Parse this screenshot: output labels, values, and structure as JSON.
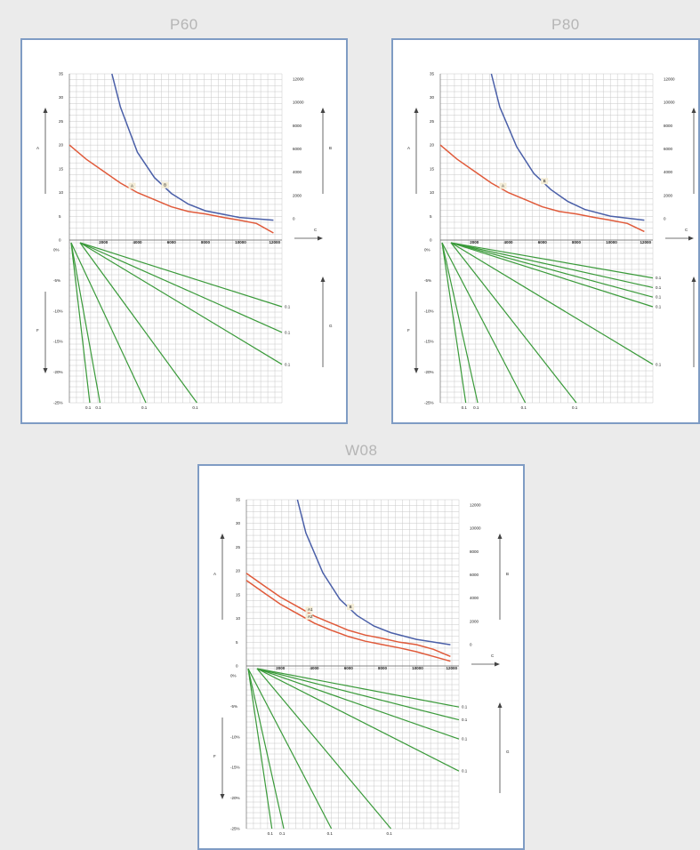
{
  "colors": {
    "background": "#ebebeb",
    "panel_border": "#7f9cc4",
    "blue_curve": "#4a5fa8",
    "red_curve": "#e05a3a",
    "green_lines": "#3a9a3a",
    "grid": "#c8c8c8",
    "title": "#b5b5b5"
  },
  "chart_data": [
    {
      "type": "line",
      "title": "P60",
      "top": {
        "left_axis_label": "A",
        "right_axis_label": "B",
        "x_axis_label": "C",
        "left_ticks": [
          "35",
          "30",
          "25",
          "20",
          "15",
          "10",
          "5",
          "0"
        ],
        "right_ticks": [
          "12000",
          "10000",
          "8000",
          "6000",
          "4000",
          "2000",
          "0"
        ],
        "x_ticks": [
          "2000",
          "4000",
          "6000",
          "8000",
          "10000",
          "12000"
        ],
        "xlim": [
          0,
          12500
        ],
        "left_ylim": [
          0,
          35
        ],
        "right_ylim": [
          0,
          12500
        ],
        "series": [
          {
            "axis": "right",
            "color": "blue",
            "label": "B",
            "x": [
              2500,
              3000,
              4000,
              5000,
              6000,
              7000,
              8000,
              10000,
              12000
            ],
            "y": [
              12500,
              10000,
              6600,
              4700,
              3500,
              2700,
              2200,
              1700,
              1500
            ]
          },
          {
            "axis": "left",
            "color": "red",
            "label": "A",
            "x": [
              0,
              1000,
              2000,
              3000,
              4000,
              5000,
              6000,
              7000,
              8000,
              9000,
              10000,
              11000,
              12000
            ],
            "y": [
              20,
              17,
              14.5,
              12,
              10,
              8.5,
              7,
              6,
              5.5,
              4.8,
              4.2,
              3.5,
              1.5
            ]
          }
        ]
      },
      "bottom": {
        "left_axis_label": "F",
        "right_axis_label": "G",
        "y_ticks": [
          "0%",
          "-5%",
          "-10%",
          "-15%",
          "-20%",
          "-25%"
        ],
        "ylim": [
          0,
          -25
        ],
        "lines": [
          {
            "label": "0.1",
            "end_x": 1200,
            "end_y": -25
          },
          {
            "label": "0.1",
            "end_x": 1800,
            "end_y": -25
          },
          {
            "label": "0.1",
            "end_x": 4500,
            "end_y": -25
          },
          {
            "label": "0.1",
            "end_x": 7500,
            "end_y": -25
          },
          {
            "label": "0.1",
            "end_x": 12500,
            "end_y": -19
          },
          {
            "label": "0.1",
            "end_x": 12500,
            "end_y": -14
          },
          {
            "label": "0.1",
            "end_x": 12500,
            "end_y": -10
          }
        ]
      }
    },
    {
      "type": "line",
      "title": "P80",
      "top": {
        "left_axis_label": "A",
        "right_axis_label": "B",
        "x_axis_label": "C",
        "left_ticks": [
          "35",
          "30",
          "25",
          "20",
          "15",
          "10",
          "5",
          "0"
        ],
        "right_ticks": [
          "12000",
          "10000",
          "8000",
          "6000",
          "4000",
          "2000",
          "0"
        ],
        "x_ticks": [
          "2000",
          "4000",
          "6000",
          "8000",
          "10000",
          "12000"
        ],
        "xlim": [
          0,
          12500
        ],
        "left_ylim": [
          0,
          35
        ],
        "right_ylim": [
          0,
          12500
        ],
        "series": [
          {
            "axis": "right",
            "color": "blue",
            "label": "B",
            "x": [
              3000,
              3500,
              4500,
              5500,
              6500,
              7500,
              8500,
              10000,
              12000
            ],
            "y": [
              12500,
              10000,
              7000,
              5000,
              3800,
              2900,
              2300,
              1800,
              1500
            ]
          },
          {
            "axis": "left",
            "color": "red",
            "label": "A",
            "x": [
              0,
              1000,
              2000,
              3000,
              4000,
              5000,
              6000,
              7000,
              8000,
              9000,
              10000,
              11000,
              12000
            ],
            "y": [
              20,
              17,
              14.5,
              12,
              10,
              8.5,
              7,
              6,
              5.5,
              4.8,
              4.2,
              3.5,
              1.8
            ]
          }
        ]
      },
      "bottom": {
        "left_axis_label": "F",
        "right_axis_label": "G",
        "y_ticks": [
          "0%",
          "-5%",
          "-10%",
          "-15%",
          "-20%",
          "-25%"
        ],
        "ylim": [
          0,
          -25
        ],
        "lines": [
          {
            "label": "0.1",
            "end_x": 1500,
            "end_y": -25
          },
          {
            "label": "0.1",
            "end_x": 2200,
            "end_y": -25
          },
          {
            "label": "0.1",
            "end_x": 5000,
            "end_y": -25
          },
          {
            "label": "0.1",
            "end_x": 8000,
            "end_y": -25
          },
          {
            "label": "0.1",
            "end_x": 12500,
            "end_y": -19
          },
          {
            "label": "0.1",
            "end_x": 12500,
            "end_y": -10
          },
          {
            "label": "0.1",
            "end_x": 12500,
            "end_y": -8.5
          },
          {
            "label": "0.1",
            "end_x": 12500,
            "end_y": -7
          },
          {
            "label": "0.1",
            "end_x": 12500,
            "end_y": -5.5
          }
        ]
      }
    },
    {
      "type": "line",
      "title": "W08",
      "top": {
        "left_axis_label": "A",
        "right_axis_label": "B",
        "x_axis_label": "C",
        "left_ticks": [
          "35",
          "30",
          "25",
          "20",
          "15",
          "10",
          "5",
          "0"
        ],
        "right_ticks": [
          "12000",
          "10000",
          "8000",
          "6000",
          "4000",
          "2000",
          "0"
        ],
        "x_ticks": [
          "2000",
          "4000",
          "6000",
          "8000",
          "10000",
          "12000"
        ],
        "xlim": [
          0,
          12500
        ],
        "left_ylim": [
          0,
          35
        ],
        "right_ylim": [
          0,
          12500
        ],
        "series": [
          {
            "axis": "right",
            "color": "blue",
            "label": "B",
            "x": [
              3000,
              3500,
              4500,
              5500,
              6500,
              7500,
              8500,
              10000,
              12000
            ],
            "y": [
              12500,
              10000,
              7000,
              5000,
              3800,
              3000,
              2500,
              2000,
              1600
            ]
          },
          {
            "axis": "left",
            "color": "red",
            "label": "A1",
            "x": [
              0,
              1000,
              2000,
              3000,
              4000,
              5000,
              6000,
              7000,
              8000,
              9000,
              10000,
              11000,
              12000
            ],
            "y": [
              19.5,
              17,
              14.5,
              12.5,
              10.5,
              9,
              7.5,
              6.5,
              5.8,
              5,
              4.5,
              3.5,
              2
            ]
          },
          {
            "axis": "left",
            "color": "red",
            "label": "A2",
            "x": [
              0,
              1000,
              2000,
              3000,
              4000,
              5000,
              6000,
              7000,
              8000,
              9000,
              10000,
              11000,
              12000
            ],
            "y": [
              18,
              15.5,
              13,
              11,
              9,
              7.5,
              6.2,
              5.2,
              4.5,
              3.8,
              3,
              2,
              1
            ]
          }
        ]
      },
      "bottom": {
        "left_axis_label": "F",
        "right_axis_label": "G",
        "y_ticks": [
          "0%",
          "-5%",
          "-10%",
          "-15%",
          "-20%",
          "-25%"
        ],
        "ylim": [
          0,
          -25
        ],
        "lines": [
          {
            "label": "0.1",
            "end_x": 1500,
            "end_y": -25
          },
          {
            "label": "0.1",
            "end_x": 2200,
            "end_y": -25
          },
          {
            "label": "0.1",
            "end_x": 5000,
            "end_y": -25
          },
          {
            "label": "0.1",
            "end_x": 8500,
            "end_y": -25
          },
          {
            "label": "0.1",
            "end_x": 12500,
            "end_y": -16
          },
          {
            "label": "0.1",
            "end_x": 12500,
            "end_y": -11
          },
          {
            "label": "0.1",
            "end_x": 12500,
            "end_y": -8
          },
          {
            "label": "0.1",
            "end_x": 12500,
            "end_y": -6
          }
        ]
      }
    }
  ]
}
